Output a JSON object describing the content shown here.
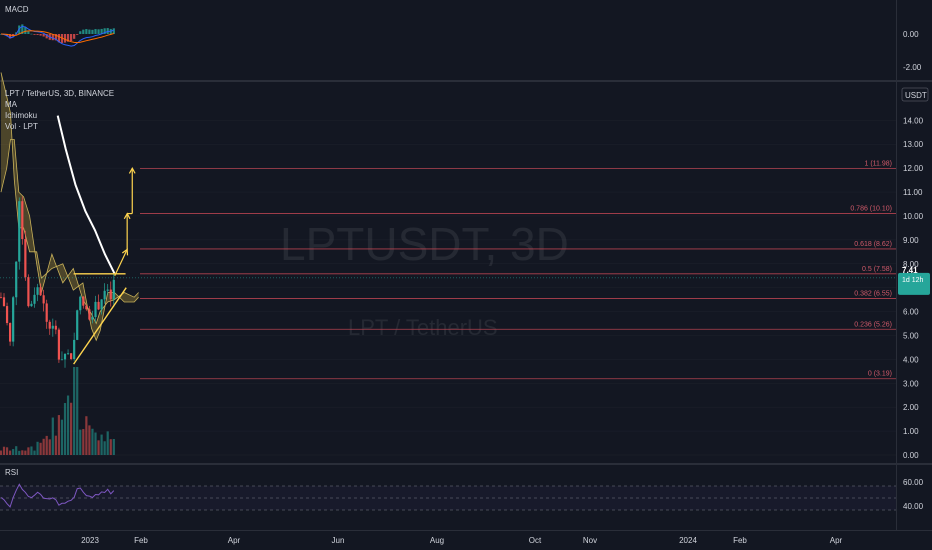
{
  "macd_panel": {
    "label": "MACD",
    "axis_ticks": [
      "0.00",
      "-2.00"
    ]
  },
  "main_panel": {
    "symbol_line": "LPT / TetherUS, 3D, BINANCE",
    "indicators": [
      "MA",
      "Ichimoku",
      "Vol · LPT"
    ],
    "currency_badge": "USDT",
    "watermark": "LPTUSDT, 3D",
    "watermark_sub": "LPT / TetherUS",
    "price_badge": {
      "price": "7.41",
      "countdown": "1d 12h"
    },
    "axis_ticks": [
      "14.00",
      "13.00",
      "12.00",
      "11.00",
      "10.00",
      "9.00",
      "8.00",
      "7.00",
      "6.00",
      "5.00",
      "4.00",
      "3.00",
      "2.00",
      "1.00",
      "0.00"
    ]
  },
  "rsi_panel": {
    "label": "RSI",
    "axis_ticks": [
      "60.00",
      "40.00"
    ]
  },
  "time_axis": [
    "2023",
    "Feb",
    "Apr",
    "Jun",
    "Aug",
    "Oct",
    "Nov",
    "2024",
    "Feb",
    "Apr"
  ],
  "fib_levels": [
    {
      "label": "1 (11.98)",
      "value": 11.98
    },
    {
      "label": "0.786 (10.10)",
      "value": 10.1
    },
    {
      "label": "0.618 (8.62)",
      "value": 8.62
    },
    {
      "label": "0.5 (7.58)",
      "value": 7.58
    },
    {
      "label": "0.382 (6.55)",
      "value": 6.55
    },
    {
      "label": "0.236 (5.26)",
      "value": 5.26
    },
    {
      "label": "0 (3.19)",
      "value": 3.19
    }
  ],
  "chart_data": {
    "type": "candlestick",
    "symbol": "LPT / TetherUS",
    "interval": "3D",
    "exchange": "BINANCE",
    "ylim": [
      0,
      14.6
    ],
    "last_price": 7.41,
    "close_path": [
      {
        "d": "2022-12-10",
        "c": 6.6
      },
      {
        "d": "2022-12-19",
        "c": 6.3
      },
      {
        "d": "2022-12-28",
        "c": 5.7
      },
      {
        "d": "2023-01-03",
        "c": 4.5
      },
      {
        "d": "2023-01-09",
        "c": 4.7
      },
      {
        "d": "2023-01-15",
        "c": 6.2
      },
      {
        "d": "2023-01-21",
        "c": 7.0
      },
      {
        "d": "2023-01-27",
        "c": 8.3
      },
      {
        "d": "2023-02-01",
        "c": 10.2
      },
      {
        "d": "2023-02-04",
        "c": 11.3
      },
      {
        "d": "2023-02-10",
        "c": 9.3
      },
      {
        "d": "2023-02-19",
        "c": 8.9
      },
      {
        "d": "2023-03-01",
        "c": 6.6
      },
      {
        "d": "2023-03-10",
        "c": 5.9
      },
      {
        "d": "2023-03-19",
        "c": 6.7
      },
      {
        "d": "2023-04-01",
        "c": 7.0
      },
      {
        "d": "2023-04-16",
        "c": 6.8
      },
      {
        "d": "2023-05-01",
        "c": 5.6
      },
      {
        "d": "2023-05-19",
        "c": 5.3
      },
      {
        "d": "2023-06-01",
        "c": 5.1
      },
      {
        "d": "2023-06-13",
        "c": 3.7
      },
      {
        "d": "2023-06-22",
        "c": 4.3
      },
      {
        "d": "2023-07-10",
        "c": 4.2
      },
      {
        "d": "2023-07-25",
        "c": 4.1
      },
      {
        "d": "2023-08-03",
        "c": 6.2
      },
      {
        "d": "2023-08-12",
        "c": 6.5
      },
      {
        "d": "2023-08-24",
        "c": 6.3
      },
      {
        "d": "2023-09-08",
        "c": 5.8
      },
      {
        "d": "2023-09-20",
        "c": 6.0
      },
      {
        "d": "2023-10-05",
        "c": 6.2
      },
      {
        "d": "2023-10-17",
        "c": 6.4
      },
      {
        "d": "2023-10-28",
        "c": 6.9
      },
      {
        "d": "2023-11-10",
        "c": 6.7
      },
      {
        "d": "2023-11-22",
        "c": 6.5
      },
      {
        "d": "2023-12-01",
        "c": 7.41
      }
    ],
    "moving_average": [
      {
        "d": "2023-06-06",
        "v": 14.2
      },
      {
        "d": "2023-07-01",
        "v": 12.8
      },
      {
        "d": "2023-08-01",
        "v": 11.3
      },
      {
        "d": "2023-09-01",
        "v": 10.2
      },
      {
        "d": "2023-10-01",
        "v": 9.4
      },
      {
        "d": "2023-11-01",
        "v": 8.4
      },
      {
        "d": "2023-12-01",
        "v": 7.6
      }
    ],
    "ichimoku_cloud": [
      {
        "d": "2022-12-10",
        "a": 16.0,
        "b": 11.0
      },
      {
        "d": "2022-12-28",
        "a": 15.0,
        "b": 12.0
      },
      {
        "d": "2023-01-09",
        "a": 14.3,
        "b": 13.2
      },
      {
        "d": "2023-01-21",
        "a": 11.5,
        "b": 13.2
      },
      {
        "d": "2023-02-04",
        "a": 9.5,
        "b": 11.0
      },
      {
        "d": "2023-02-19",
        "a": 9.5,
        "b": 10.8
      },
      {
        "d": "2023-03-10",
        "a": 8.5,
        "b": 10.0
      },
      {
        "d": "2023-04-01",
        "a": 8.5,
        "b": 8.0
      },
      {
        "d": "2023-04-16",
        "a": 7.4,
        "b": 6.8
      },
      {
        "d": "2023-05-19",
        "a": 7.8,
        "b": 8.4
      },
      {
        "d": "2023-06-22",
        "a": 8.0,
        "b": 7.2
      },
      {
        "d": "2023-07-25",
        "a": 6.9,
        "b": 7.8
      },
      {
        "d": "2023-08-24",
        "a": 7.2,
        "b": 6.5
      },
      {
        "d": "2023-09-20",
        "a": 5.3,
        "b": 5.9
      },
      {
        "d": "2023-10-05",
        "a": 4.8,
        "b": 5.5
      },
      {
        "d": "2023-10-17",
        "a": 5.2,
        "b": 6.0
      },
      {
        "d": "2023-11-10",
        "a": 6.8,
        "b": 6.4
      },
      {
        "d": "2023-12-01",
        "a": 6.8,
        "b": 6.5
      },
      {
        "d": "2024-01-01",
        "a": 6.4,
        "b": 6.8
      },
      {
        "d": "2024-02-01",
        "a": 6.4,
        "b": 6.6
      },
      {
        "d": "2024-02-15",
        "a": 6.6,
        "b": 6.8
      }
    ],
    "trendlines": [
      {
        "name": "ascending-support",
        "from": {
          "d": "2023-07-26",
          "y": 3.8
        },
        "to": {
          "d": "2024-01-07",
          "y": 7.0
        }
      },
      {
        "name": "horizontal-resistance",
        "from": {
          "d": "2023-07-26",
          "y": 7.58
        },
        "to": {
          "d": "2024-01-05",
          "y": 7.58
        }
      }
    ],
    "projection_arrows": [
      {
        "from": {
          "d": "2023-12-02",
          "y": 7.5
        },
        "to": {
          "d": "2024-01-10",
          "y": 8.6
        }
      },
      {
        "from": {
          "d": "2024-01-10",
          "y": 8.6
        },
        "to": {
          "d": "2024-01-10",
          "y": 10.1
        }
      },
      {
        "from": {
          "d": "2024-01-10",
          "y": 10.1
        },
        "to": {
          "d": "2024-01-26",
          "y": 10.1
        }
      },
      {
        "from": {
          "d": "2024-01-26",
          "y": 10.1
        },
        "to": {
          "d": "2024-01-26",
          "y": 12.0
        }
      }
    ],
    "volume_peak_date": "2023-08-03",
    "rsi": [
      {
        "d": "2022-12-10",
        "v": 50
      },
      {
        "d": "2022-12-28",
        "v": 41
      },
      {
        "d": "2023-01-10",
        "v": 37
      },
      {
        "d": "2023-01-25",
        "v": 60
      },
      {
        "d": "2023-02-04",
        "v": 73
      },
      {
        "d": "2023-02-19",
        "v": 62
      },
      {
        "d": "2023-03-10",
        "v": 48
      },
      {
        "d": "2023-04-01",
        "v": 58
      },
      {
        "d": "2023-05-01",
        "v": 50
      },
      {
        "d": "2023-06-01",
        "v": 46
      },
      {
        "d": "2023-06-13",
        "v": 38
      },
      {
        "d": "2023-07-10",
        "v": 47
      },
      {
        "d": "2023-07-25",
        "v": 45
      },
      {
        "d": "2023-08-03",
        "v": 70
      },
      {
        "d": "2023-08-24",
        "v": 60
      },
      {
        "d": "2023-09-20",
        "v": 52
      },
      {
        "d": "2023-10-17",
        "v": 58
      },
      {
        "d": "2023-11-10",
        "v": 62
      },
      {
        "d": "2023-11-22",
        "v": 55
      },
      {
        "d": "2023-12-01",
        "v": 65
      }
    ],
    "rsi_bands": [
      70,
      50,
      30
    ]
  }
}
